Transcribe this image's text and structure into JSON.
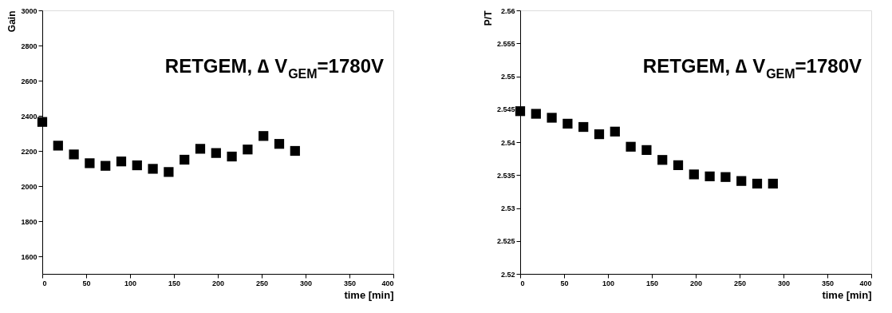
{
  "chart_data": [
    {
      "type": "scatter",
      "xlabel": "time [min]",
      "ylabel": "Gain",
      "marker": "square",
      "x": [
        0,
        18,
        36,
        54,
        72,
        90,
        108,
        126,
        144,
        162,
        180,
        198,
        216,
        234,
        252,
        270,
        288
      ],
      "series": [
        {
          "color": "#000000",
          "values": [
            2365,
            2230,
            2180,
            2130,
            2115,
            2140,
            2118,
            2098,
            2080,
            2150,
            2212,
            2188,
            2168,
            2208,
            2285,
            2240,
            2200
          ]
        }
      ],
      "xlim": [
        0,
        400
      ],
      "xticks": [
        0,
        50,
        100,
        150,
        200,
        250,
        300,
        350,
        400
      ],
      "ylim": [
        1500,
        3000
      ],
      "yticks": [
        1600,
        1800,
        2000,
        2200,
        2400,
        2600,
        2800,
        3000
      ],
      "annotations": [
        "RETGEM, ∆ V$_{GEM}$=1780V"
      ]
    },
    {
      "type": "scatter",
      "xlabel": "time [min]",
      "ylabel": "P/T",
      "marker": "square",
      "x": [
        0,
        18,
        36,
        54,
        72,
        90,
        108,
        126,
        144,
        162,
        180,
        198,
        216,
        234,
        252,
        270,
        288
      ],
      "series": [
        {
          "color": "#000000",
          "values": [
            2.5447,
            2.5443,
            2.5437,
            2.5428,
            2.5423,
            2.5412,
            2.5416,
            2.5393,
            2.5388,
            2.5373,
            2.5365,
            2.5351,
            2.5348,
            2.5347,
            2.5341,
            2.5337,
            2.5337
          ]
        }
      ],
      "xlim": [
        0,
        400
      ],
      "xticks": [
        0,
        50,
        100,
        150,
        200,
        250,
        300,
        350,
        400
      ],
      "ylim": [
        2.52,
        2.56
      ],
      "yticks": [
        2.52,
        2.525,
        2.53,
        2.535,
        2.54,
        2.545,
        2.55,
        2.555,
        2.56
      ],
      "annotations": [
        "RETGEM, ∆ V$_{GEM}$=1780V"
      ]
    }
  ]
}
